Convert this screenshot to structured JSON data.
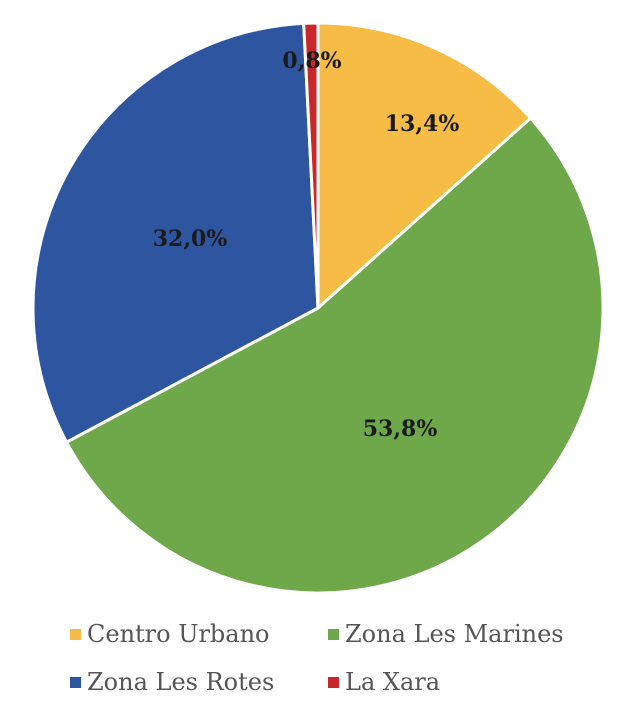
{
  "chart_data": {
    "type": "pie",
    "title": "",
    "categories": [
      "Centro Urbano",
      "Zona Les Marines",
      "Zona Les Rotes",
      "La Xara"
    ],
    "values": [
      13.4,
      53.8,
      32.0,
      0.8
    ],
    "labels": [
      "13,4%",
      "53,8%",
      "32,0%",
      "0,8%"
    ],
    "colors": [
      "#F6BC45",
      "#6EA84A",
      "#2E56A0",
      "#C8282A"
    ],
    "start_angle_deg": 0,
    "direction": "clockwise",
    "legend_position": "bottom"
  },
  "legend": {
    "items": [
      {
        "label": "Centro Urbano",
        "color": "#F6BC45"
      },
      {
        "label": "Zona Les Marines",
        "color": "#6EA84A"
      },
      {
        "label": "Zona Les Rotes",
        "color": "#2E56A0"
      },
      {
        "label": "La Xara",
        "color": "#C8282A"
      }
    ]
  }
}
